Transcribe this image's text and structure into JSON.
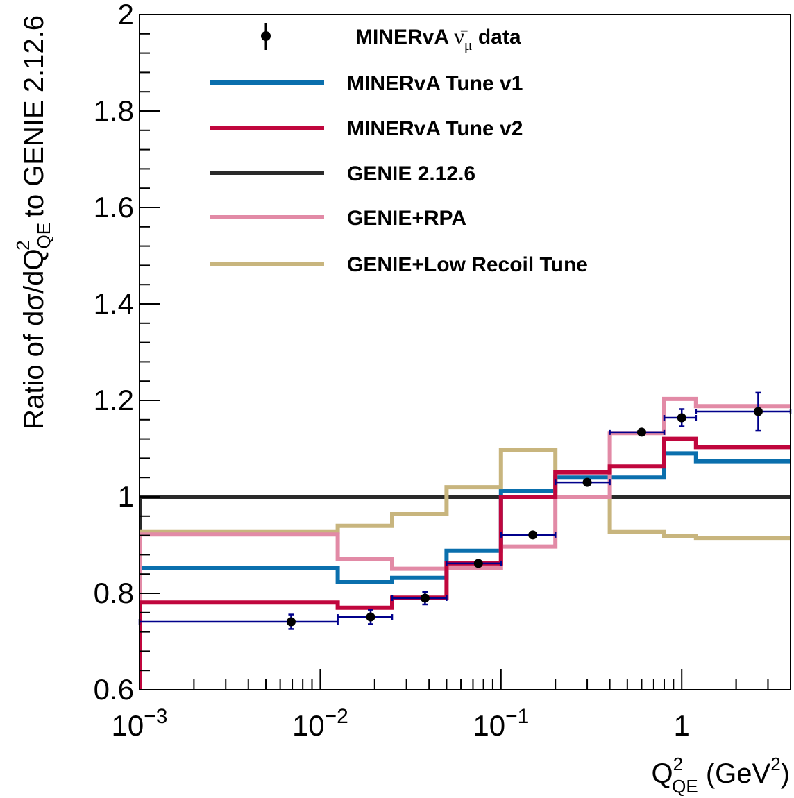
{
  "chart_data": {
    "type": "line",
    "xscale": "log",
    "xlim": [
      0.001,
      4.0
    ],
    "ylim": [
      0.6,
      2.0
    ],
    "grid": false,
    "legend_position": "top",
    "ylabel": {
      "pre": "Ratio of dσ/dQ",
      "sup": "2",
      "sub": "QE",
      "post": " to GENIE 2.12.6"
    },
    "xlabel": {
      "q": "Q",
      "sup": "2",
      "sub": "QE",
      "unit_pre": " (GeV",
      "unit_sup": "2",
      "unit_post": ")"
    },
    "yticks": [
      {
        "v": 0.6,
        "label": "0.6"
      },
      {
        "v": 0.8,
        "label": "0.8"
      },
      {
        "v": 1.0,
        "label": "1"
      },
      {
        "v": 1.2,
        "label": "1.2"
      },
      {
        "v": 1.4,
        "label": "1.4"
      },
      {
        "v": 1.6,
        "label": "1.6"
      },
      {
        "v": 1.8,
        "label": "1.8"
      },
      {
        "v": 2.0,
        "label": "2"
      }
    ],
    "xticks": [
      {
        "v": 0.001,
        "base": "10",
        "exp": "−3"
      },
      {
        "v": 0.01,
        "base": "10",
        "exp": "−2"
      },
      {
        "v": 0.1,
        "base": "10",
        "exp": "−1"
      },
      {
        "v": 1.0,
        "base": "1",
        "exp": ""
      }
    ],
    "bin_edges": [
      0.001,
      0.0125,
      0.025,
      0.05,
      0.1,
      0.2,
      0.4,
      0.8,
      1.2,
      4.0
    ],
    "data": {
      "name_pre": "MINERvA ",
      "name_nu": "ν̄",
      "name_mu": "μ",
      "name_post": " data",
      "color": "#000000",
      "error_color": "#00008b",
      "points": [
        {
          "x": 0.0069,
          "y": 0.741,
          "err": 0.015
        },
        {
          "x": 0.019,
          "y": 0.751,
          "err": 0.015
        },
        {
          "x": 0.038,
          "y": 0.79,
          "err": 0.013
        },
        {
          "x": 0.075,
          "y": 0.862,
          "err": 0.005
        },
        {
          "x": 0.15,
          "y": 0.921,
          "err": 0.004
        },
        {
          "x": 0.3,
          "y": 1.03,
          "err": 0.004
        },
        {
          "x": 0.6,
          "y": 1.134,
          "err": 0.005
        },
        {
          "x": 1.0,
          "y": 1.164,
          "err": 0.018
        },
        {
          "x": 2.65,
          "y": 1.177,
          "err": 0.039
        }
      ]
    },
    "series": [
      {
        "name": "MINERvA Tune v1",
        "color": "#0a6fad",
        "values": [
          0.853,
          0.823,
          0.832,
          0.888,
          1.012,
          1.04,
          1.04,
          1.09,
          1.074
        ]
      },
      {
        "name": "MINERvA Tune v2",
        "color": "#c0063d",
        "values": [
          0.781,
          0.77,
          0.791,
          0.862,
          1.0,
          1.051,
          1.063,
          1.12,
          1.103
        ]
      },
      {
        "name": "GENIE 2.12.6",
        "color": "#2a2a2a",
        "values": [
          1.0,
          1.0,
          1.0,
          1.0,
          1.0,
          1.0,
          1.0,
          1.0,
          1.0
        ]
      },
      {
        "name": "GENIE+RPA",
        "color": "#e28aa6",
        "values": [
          0.922,
          0.872,
          0.851,
          0.852,
          0.897,
          1.0,
          1.132,
          1.203,
          1.188
        ]
      },
      {
        "name": "GENIE+Low Recoil Tune",
        "color": "#c8b57e",
        "values": [
          0.927,
          0.94,
          0.964,
          1.02,
          1.097,
          1.0,
          0.927,
          0.918,
          0.915
        ]
      }
    ]
  }
}
